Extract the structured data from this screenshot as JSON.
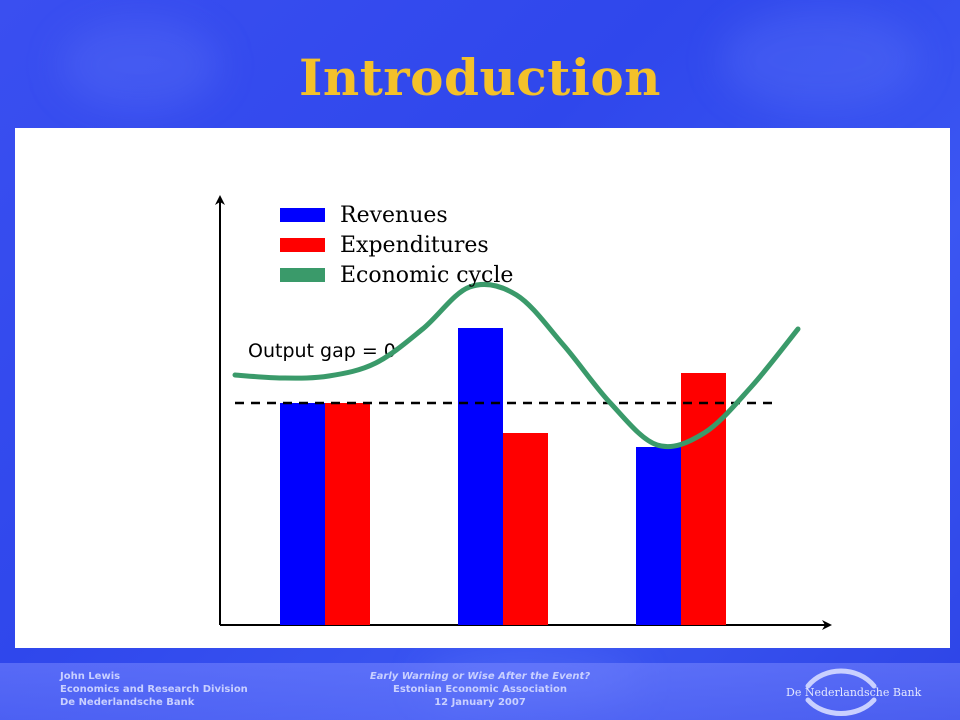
{
  "slide": {
    "title": "Introduction"
  },
  "footer": {
    "left": [
      "John Lewis",
      "Economics and Research Division",
      "De Nederlandsche Bank"
    ],
    "center": [
      "Early Warning or Wise After the Event?",
      "Estonian Economic Association",
      "12 January 2007"
    ],
    "logo_text": "De Nederlandsche Bank"
  },
  "colors": {
    "revenues": "#0000ff",
    "expenditures": "#ff0000",
    "economic_cycle": "#3a9a6a",
    "title": "#f4c12a"
  },
  "chart_data": {
    "type": "bar",
    "categories": [
      "",
      "",
      ""
    ],
    "series": [
      {
        "name": "Revenues",
        "values": [
          222,
          297,
          178
        ]
      },
      {
        "name": "Expenditures",
        "values": [
          222,
          192,
          252
        ]
      }
    ],
    "line": {
      "name": "Economic cycle",
      "x": [
        0,
        0.5,
        1,
        1.5,
        2,
        2.5,
        3,
        3.5,
        4,
        4.5,
        5,
        5.5,
        6
      ],
      "y": [
        250,
        247,
        249,
        262,
        296,
        338,
        330,
        280,
        222,
        180,
        192,
        238,
        296
      ]
    },
    "reference_line": {
      "label": "Output gap = 0",
      "value": 222
    },
    "ylim": [
      0,
      420
    ],
    "xlim": [
      0,
      6
    ],
    "legend": [
      "Revenues",
      "Expenditures",
      "Economic cycle"
    ],
    "legend_position": "top-left",
    "grid": false
  }
}
